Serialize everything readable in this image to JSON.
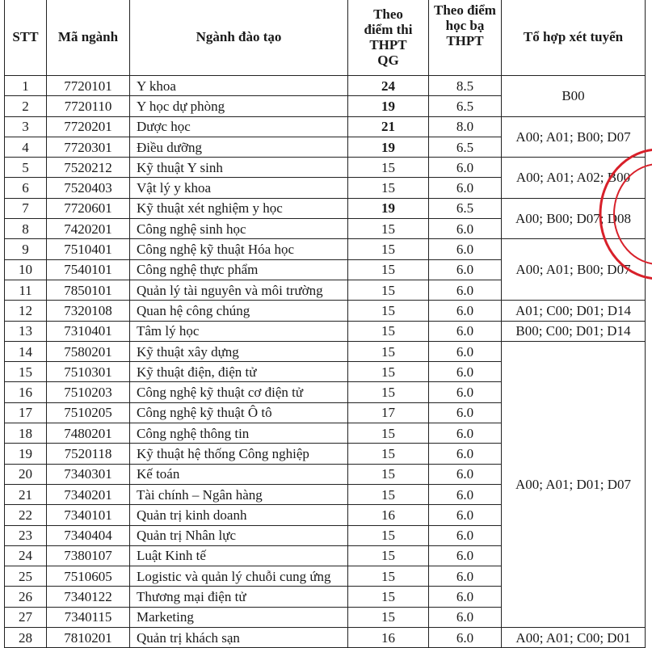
{
  "headers": {
    "stt": "STT",
    "code": "Mã ngành",
    "major": "Ngành đào tạo",
    "exam_score": "Theo điểm thi THPT QG",
    "transcript_score": "Theo điểm học bạ THPT",
    "combination": "Tổ hợp xét tuyển"
  },
  "rows": [
    {
      "stt": "1",
      "code": "7720101",
      "major": "Y khoa",
      "exam": "24",
      "transcript": "8.5",
      "bold": true
    },
    {
      "stt": "2",
      "code": "7720110",
      "major": "Y học dự phòng",
      "exam": "19",
      "transcript": "6.5",
      "bold": true
    },
    {
      "stt": "3",
      "code": "7720201",
      "major": "Dược học",
      "exam": "21",
      "transcript": "8.0",
      "bold": true
    },
    {
      "stt": "4",
      "code": "7720301",
      "major": "Điều dưỡng",
      "exam": "19",
      "transcript": "6.5",
      "bold": true
    },
    {
      "stt": "5",
      "code": "7520212",
      "major": "Kỹ thuật Y sinh",
      "exam": "15",
      "transcript": "6.0"
    },
    {
      "stt": "6",
      "code": "7520403",
      "major": "Vật lý y khoa",
      "exam": "15",
      "transcript": "6.0"
    },
    {
      "stt": "7",
      "code": "7720601",
      "major": "Kỹ thuật xét nghiệm y học",
      "exam": "19",
      "transcript": "6.5",
      "bold": true
    },
    {
      "stt": "8",
      "code": "7420201",
      "major": "Công nghệ sinh học",
      "exam": "15",
      "transcript": "6.0"
    },
    {
      "stt": "9",
      "code": "7510401",
      "major": "Công nghệ kỹ thuật Hóa học",
      "exam": "15",
      "transcript": "6.0"
    },
    {
      "stt": "10",
      "code": "7540101",
      "major": "Công nghệ thực phẩm",
      "exam": "15",
      "transcript": "6.0"
    },
    {
      "stt": "11",
      "code": "7850101",
      "major": "Quản lý tài nguyên và môi trường",
      "exam": "15",
      "transcript": "6.0"
    },
    {
      "stt": "12",
      "code": "7320108",
      "major": "Quan hệ công chúng",
      "exam": "15",
      "transcript": "6.0"
    },
    {
      "stt": "13",
      "code": "7310401",
      "major": "Tâm lý học",
      "exam": "15",
      "transcript": "6.0"
    },
    {
      "stt": "14",
      "code": "7580201",
      "major": "Kỹ thuật xây dựng",
      "exam": "15",
      "transcript": "6.0"
    },
    {
      "stt": "15",
      "code": "7510301",
      "major": "Kỹ thuật điện, điện tử",
      "exam": "15",
      "transcript": "6.0"
    },
    {
      "stt": "16",
      "code": "7510203",
      "major": "Công nghệ kỹ thuật cơ điện tử",
      "exam": "15",
      "transcript": "6.0"
    },
    {
      "stt": "17",
      "code": "7510205",
      "major": "Công nghệ kỹ thuật Ô tô",
      "exam": "17",
      "transcript": "6.0"
    },
    {
      "stt": "18",
      "code": "7480201",
      "major": "Công nghệ thông tin",
      "exam": "15",
      "transcript": "6.0"
    },
    {
      "stt": "19",
      "code": "7520118",
      "major": "Kỹ thuật hệ thống Công nghiệp",
      "exam": "15",
      "transcript": "6.0"
    },
    {
      "stt": "20",
      "code": "7340301",
      "major": "Kế toán",
      "exam": "15",
      "transcript": "6.0"
    },
    {
      "stt": "21",
      "code": "7340201",
      "major": "Tài chính – Ngân hàng",
      "exam": "15",
      "transcript": "6.0"
    },
    {
      "stt": "22",
      "code": "7340101",
      "major": "Quản trị kinh doanh",
      "exam": "16",
      "transcript": "6.0"
    },
    {
      "stt": "23",
      "code": "7340404",
      "major": "Quản trị Nhân lực",
      "exam": "15",
      "transcript": "6.0"
    },
    {
      "stt": "24",
      "code": "7380107",
      "major": "Luật Kinh tế",
      "exam": "15",
      "transcript": "6.0"
    },
    {
      "stt": "25",
      "code": "7510605",
      "major": "Logistic và quản lý chuỗi cung ứng",
      "exam": "15",
      "transcript": "6.0"
    },
    {
      "stt": "26",
      "code": "7340122",
      "major": "Thương mại điện tử",
      "exam": "15",
      "transcript": "6.0"
    },
    {
      "stt": "27",
      "code": "7340115",
      "major": "Marketing",
      "exam": "15",
      "transcript": "6.0"
    },
    {
      "stt": "28",
      "code": "7810201",
      "major": "Quản trị khách sạn",
      "exam": "16",
      "transcript": "6.0"
    }
  ],
  "combinations": [
    {
      "start": 1,
      "span": 2,
      "text": "B00"
    },
    {
      "start": 3,
      "span": 2,
      "text": "A00; A01; B00; D07"
    },
    {
      "start": 5,
      "span": 2,
      "text": "A00; A01; A02; B00"
    },
    {
      "start": 7,
      "span": 2,
      "text": "A00; B00; D07; D08"
    },
    {
      "start": 9,
      "span": 3,
      "text": "A00; A01; B00; D07"
    },
    {
      "start": 12,
      "span": 1,
      "text": "A01; C00; D01; D14"
    },
    {
      "start": 13,
      "span": 1,
      "text": "B00; C00; D01; D14"
    },
    {
      "start": 14,
      "span": 14,
      "text": "A00; A01; D01; D07"
    },
    {
      "start": 28,
      "span": 1,
      "text": "A00; A01; C00; D01"
    }
  ],
  "stamp_color": "#d8202a"
}
